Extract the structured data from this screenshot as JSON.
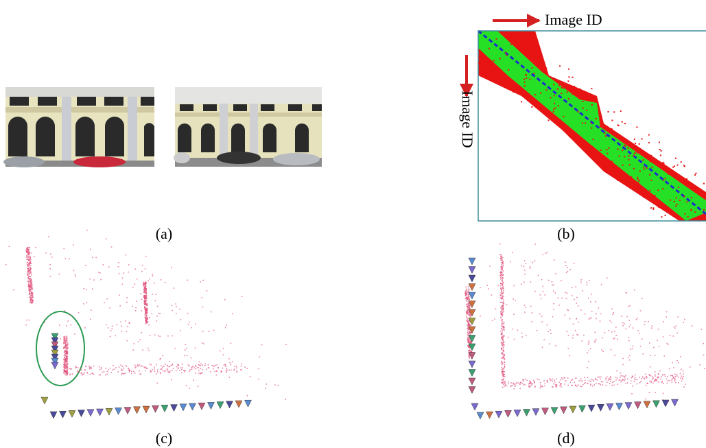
{
  "panels": [
    {
      "label": "(a)"
    },
    {
      "label": "(b)"
    },
    {
      "label": "(c)"
    },
    {
      "label": "(d)"
    }
  ],
  "matrix": {
    "x_axis": "Image ID",
    "y_axis": "Image ID"
  }
}
